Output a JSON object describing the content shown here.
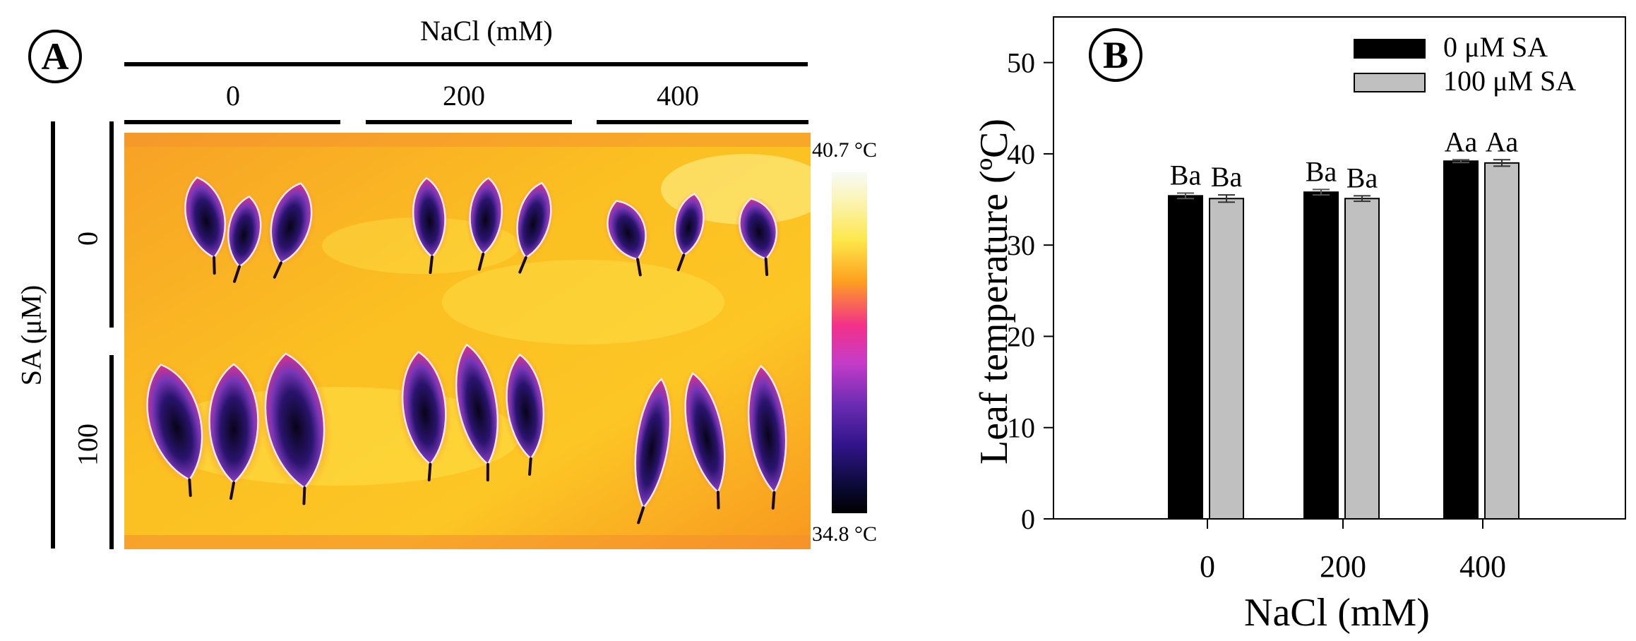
{
  "panel_a": {
    "letter": "A",
    "nacl_title": "NaCl (mM)",
    "nacl_levels": [
      "0",
      "200",
      "400"
    ],
    "sa_title": "SA (μM)",
    "sa_levels": [
      "0",
      "100"
    ],
    "colorbar": {
      "max_label": "40.7 °C",
      "min_label": "34.8 °C"
    },
    "leaf_icon": "leaf-icon"
  },
  "panel_b": {
    "letter": "B"
  },
  "chart_data": {
    "type": "bar",
    "title": "",
    "xlabel": "NaCl (mM)",
    "ylabel": "Leaf temperature (ºC)",
    "categories": [
      "0",
      "200",
      "400"
    ],
    "ylim": [
      0,
      55
    ],
    "yticks": [
      "0",
      "10",
      "20",
      "30",
      "40",
      "50"
    ],
    "legend_position": "top-right",
    "series": [
      {
        "name": "0 μM SA",
        "color": "#000000",
        "values": [
          35.4,
          35.8,
          39.2
        ],
        "errors": [
          0.3,
          0.3,
          0.15
        ],
        "labels": [
          "Ba",
          "Ba",
          "Aa"
        ]
      },
      {
        "name": "100 μM SA",
        "color": "#c0c0c0",
        "values": [
          35.1,
          35.1,
          39.0
        ],
        "errors": [
          0.4,
          0.3,
          0.35
        ],
        "labels": [
          "Ba",
          "Ba",
          "Aa"
        ]
      }
    ]
  }
}
